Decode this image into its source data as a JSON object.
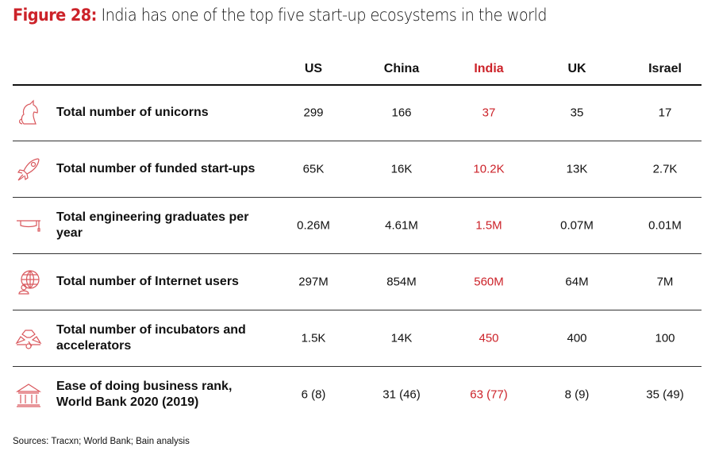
{
  "title": {
    "figure": "Figure 28:",
    "text": " India has one of the top five start-up ecosystems in the world"
  },
  "columns": [
    "US",
    "China",
    "India",
    "UK",
    "Israel"
  ],
  "highlight_color": "#cc2229",
  "rows": [
    {
      "icon": "unicorn-icon",
      "label": "Total number of unicorns",
      "values": [
        "299",
        "166",
        "37",
        "35",
        "17"
      ]
    },
    {
      "icon": "rocket-icon",
      "label": "Total number of funded start-ups",
      "values": [
        "65K",
        "16K",
        "10.2K",
        "13K",
        "2.7K"
      ]
    },
    {
      "icon": "graduation-cap-icon",
      "label": "Total engineering graduates per year",
      "values": [
        "0.26M",
        "4.61M",
        "1.5M",
        "0.07M",
        "0.01M"
      ]
    },
    {
      "icon": "globe-user-icon",
      "label": "Total number of Internet users",
      "values": [
        "297M",
        "854M",
        "560M",
        "64M",
        "7M"
      ]
    },
    {
      "icon": "gauge-icon",
      "label": "Total number of incubators and accelerators",
      "values": [
        "1.5K",
        "14K",
        "450",
        "400",
        "100"
      ]
    },
    {
      "icon": "bank-building-icon",
      "label": "Ease of doing business rank, World Bank 2020 (2019)",
      "values": [
        "6 (8)",
        "31 (46)",
        "63 (77)",
        "8 (9)",
        "35 (49)"
      ]
    }
  ],
  "source": "Sources: Tracxn; World Bank; Bain analysis"
}
